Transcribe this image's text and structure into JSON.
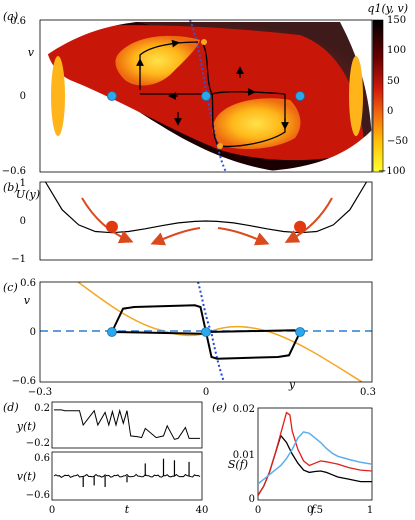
{
  "panel_labels": {
    "a": "(a)",
    "b": "(b)",
    "c": "(c)",
    "d": "(d)",
    "e": "(e)"
  },
  "chart_data": [
    {
      "id": "a",
      "type": "heatmap",
      "colorbar_label": "q1(y, v)",
      "colorbar_ticks": [
        "150",
        "100",
        "50",
        "0",
        "−50",
        "−100"
      ],
      "colorbar_range": [
        -100,
        150
      ],
      "ylabel": "v",
      "y_ticks": [
        "0.6",
        "0",
        "−0.6"
      ],
      "ylim": [
        -0.6,
        0.6
      ],
      "xlim": [
        -0.3,
        0.3
      ],
      "fixed_points": [
        {
          "y": -0.17,
          "v": 0.0
        },
        {
          "y": 0.0,
          "v": 0.0
        },
        {
          "y": 0.17,
          "v": 0.0
        }
      ],
      "colors": {
        "dark": "#1a0000",
        "mid": "#d42010",
        "light": "#ffcc00",
        "fixed_point": "#29a9ec",
        "nullcline": "#3355dd",
        "orange_point": "#f5a623"
      }
    },
    {
      "id": "b",
      "type": "line",
      "ylabel": "U(y)",
      "y_ticks": [
        "1",
        "0",
        "−1"
      ],
      "ylim": [
        -1,
        1
      ],
      "xlim": [
        -0.3,
        0.3
      ],
      "series": [
        {
          "x": [
            -0.29,
            -0.26,
            -0.23,
            -0.2,
            -0.17,
            -0.14,
            -0.11,
            -0.08,
            -0.05,
            -0.02,
            0,
            0.02,
            0.05,
            0.08,
            0.11,
            0.14,
            0.17,
            0.2,
            0.23,
            0.26,
            0.29
          ],
          "y": [
            1.0,
            0.29,
            -0.1,
            -0.27,
            -0.3,
            -0.27,
            -0.2,
            -0.12,
            -0.05,
            -0.01,
            0.0,
            -0.01,
            -0.05,
            -0.12,
            -0.2,
            -0.27,
            -0.3,
            -0.27,
            -0.1,
            0.29,
            1.0
          ]
        }
      ],
      "minima": [
        {
          "x": -0.17,
          "y": -0.3
        },
        {
          "x": 0.17,
          "y": -0.3
        }
      ],
      "colors": {
        "curve": "#000000",
        "arrow": "#d94a1e",
        "ball": "#e23a10"
      }
    },
    {
      "id": "c",
      "type": "line",
      "ylabel": "v",
      "xlabel": "y",
      "x_ticks": [
        "−0.3",
        "0",
        "0.3"
      ],
      "y_ticks": [
        "0.6",
        "0",
        "−0.6"
      ],
      "xlim": [
        -0.3,
        0.3
      ],
      "ylim": [
        -0.6,
        0.6
      ],
      "orbit_left": {
        "x": [
          -0.17,
          -0.15,
          -0.13,
          -0.02,
          -0.01,
          0.0,
          -0.005,
          -0.17
        ],
        "v": [
          0.0,
          0.28,
          0.3,
          0.32,
          0.3,
          0.0,
          -0.02,
          0.0
        ]
      },
      "orbit_right": {
        "x": [
          0.0,
          0.01,
          0.02,
          0.13,
          0.15,
          0.17,
          0.16,
          0.0
        ],
        "v": [
          0.0,
          -0.3,
          -0.32,
          -0.3,
          -0.28,
          0.0,
          0.02,
          0.0
        ]
      },
      "fixed_points": [
        {
          "y": -0.17,
          "v": 0.0
        },
        {
          "y": 0.0,
          "v": 0.0
        },
        {
          "y": 0.17,
          "v": 0.0
        }
      ],
      "colors": {
        "orbit": "#000000",
        "nullcline": "#f5a623",
        "dashed": "#2a7fd4",
        "dotted": "#2244dd",
        "fixed_point": "#29a9ec"
      }
    },
    {
      "id": "d_top",
      "type": "line",
      "ylabel": "y(t)",
      "y_ticks": [
        "0.2",
        "−0.2"
      ],
      "ylim": [
        -0.25,
        0.25
      ],
      "xlim": [
        0,
        40
      ],
      "series": [
        {
          "x": [
            0,
            2,
            3,
            7,
            8,
            11,
            12,
            14,
            15,
            16,
            17,
            18,
            19,
            20,
            21,
            23,
            24,
            25,
            28,
            30,
            31,
            33,
            34,
            36,
            37,
            40
          ],
          "y": [
            0.18,
            0.18,
            0.17,
            0.17,
            0.0,
            0.17,
            0.0,
            0.15,
            0.0,
            0.16,
            0.0,
            0.17,
            0.02,
            0.17,
            -0.13,
            -0.14,
            -0.15,
            -0.04,
            -0.15,
            -0.13,
            -0.01,
            -0.17,
            -0.16,
            -0.03,
            -0.16,
            -0.16
          ]
        }
      ]
    },
    {
      "id": "d_bottom",
      "type": "line",
      "ylabel": "v(t)",
      "xlabel": "t",
      "x_ticks": [
        "0",
        "40"
      ],
      "y_ticks": [
        "0.6",
        "−0.6"
      ],
      "ylim": [
        -0.7,
        0.7
      ],
      "xlim": [
        0,
        40
      ],
      "spikes": [
        {
          "t": 8,
          "v": -0.35
        },
        {
          "t": 11,
          "v": -0.3
        },
        {
          "t": 14,
          "v": -0.35
        },
        {
          "t": 20,
          "v": -0.2
        },
        {
          "t": 25,
          "v": 0.4
        },
        {
          "t": 30,
          "v": 0.55
        },
        {
          "t": 33,
          "v": 0.5
        },
        {
          "t": 37,
          "v": 0.45
        }
      ]
    },
    {
      "id": "e",
      "type": "line",
      "ylabel": "S(f)",
      "xlabel": "f",
      "x_ticks": [
        "0",
        "0.5",
        "1"
      ],
      "y_ticks": [
        "0.02",
        "0.01",
        "0"
      ],
      "xlim": [
        0,
        1
      ],
      "ylim": [
        0,
        0.02
      ],
      "series": [
        {
          "x": [
            0,
            0.05,
            0.1,
            0.15,
            0.2,
            0.25,
            0.3,
            0.35,
            0.4,
            0.45,
            0.5,
            0.55,
            0.6,
            0.65,
            0.7,
            0.8,
            0.9,
            1.0
          ],
          "y": [
            0.001,
            0.003,
            0.006,
            0.01,
            0.014,
            0.0125,
            0.01,
            0.008,
            0.0065,
            0.006,
            0.0062,
            0.0063,
            0.006,
            0.0055,
            0.005,
            0.0045,
            0.004,
            0.004
          ]
        },
        {
          "x": [
            0,
            0.05,
            0.1,
            0.15,
            0.2,
            0.25,
            0.28,
            0.3,
            0.35,
            0.4,
            0.45,
            0.5,
            0.55,
            0.6,
            0.7,
            0.8,
            0.9,
            1.0
          ],
          "y": [
            0.001,
            0.003,
            0.006,
            0.01,
            0.0145,
            0.019,
            0.0185,
            0.015,
            0.011,
            0.0085,
            0.0075,
            0.008,
            0.0085,
            0.0083,
            0.0078,
            0.007,
            0.0065,
            0.0063
          ]
        },
        {
          "x": [
            0,
            0.05,
            0.1,
            0.15,
            0.2,
            0.25,
            0.3,
            0.35,
            0.4,
            0.45,
            0.5,
            0.55,
            0.6,
            0.65,
            0.7,
            0.8,
            0.9,
            1.0
          ],
          "y": [
            0.0035,
            0.0045,
            0.0055,
            0.0065,
            0.0075,
            0.009,
            0.011,
            0.0135,
            0.0148,
            0.0145,
            0.0135,
            0.0125,
            0.0112,
            0.0102,
            0.0095,
            0.0088,
            0.0082,
            0.0078
          ]
        }
      ],
      "colors": [
        "#000000",
        "#e0201c",
        "#5aaef0"
      ]
    }
  ]
}
